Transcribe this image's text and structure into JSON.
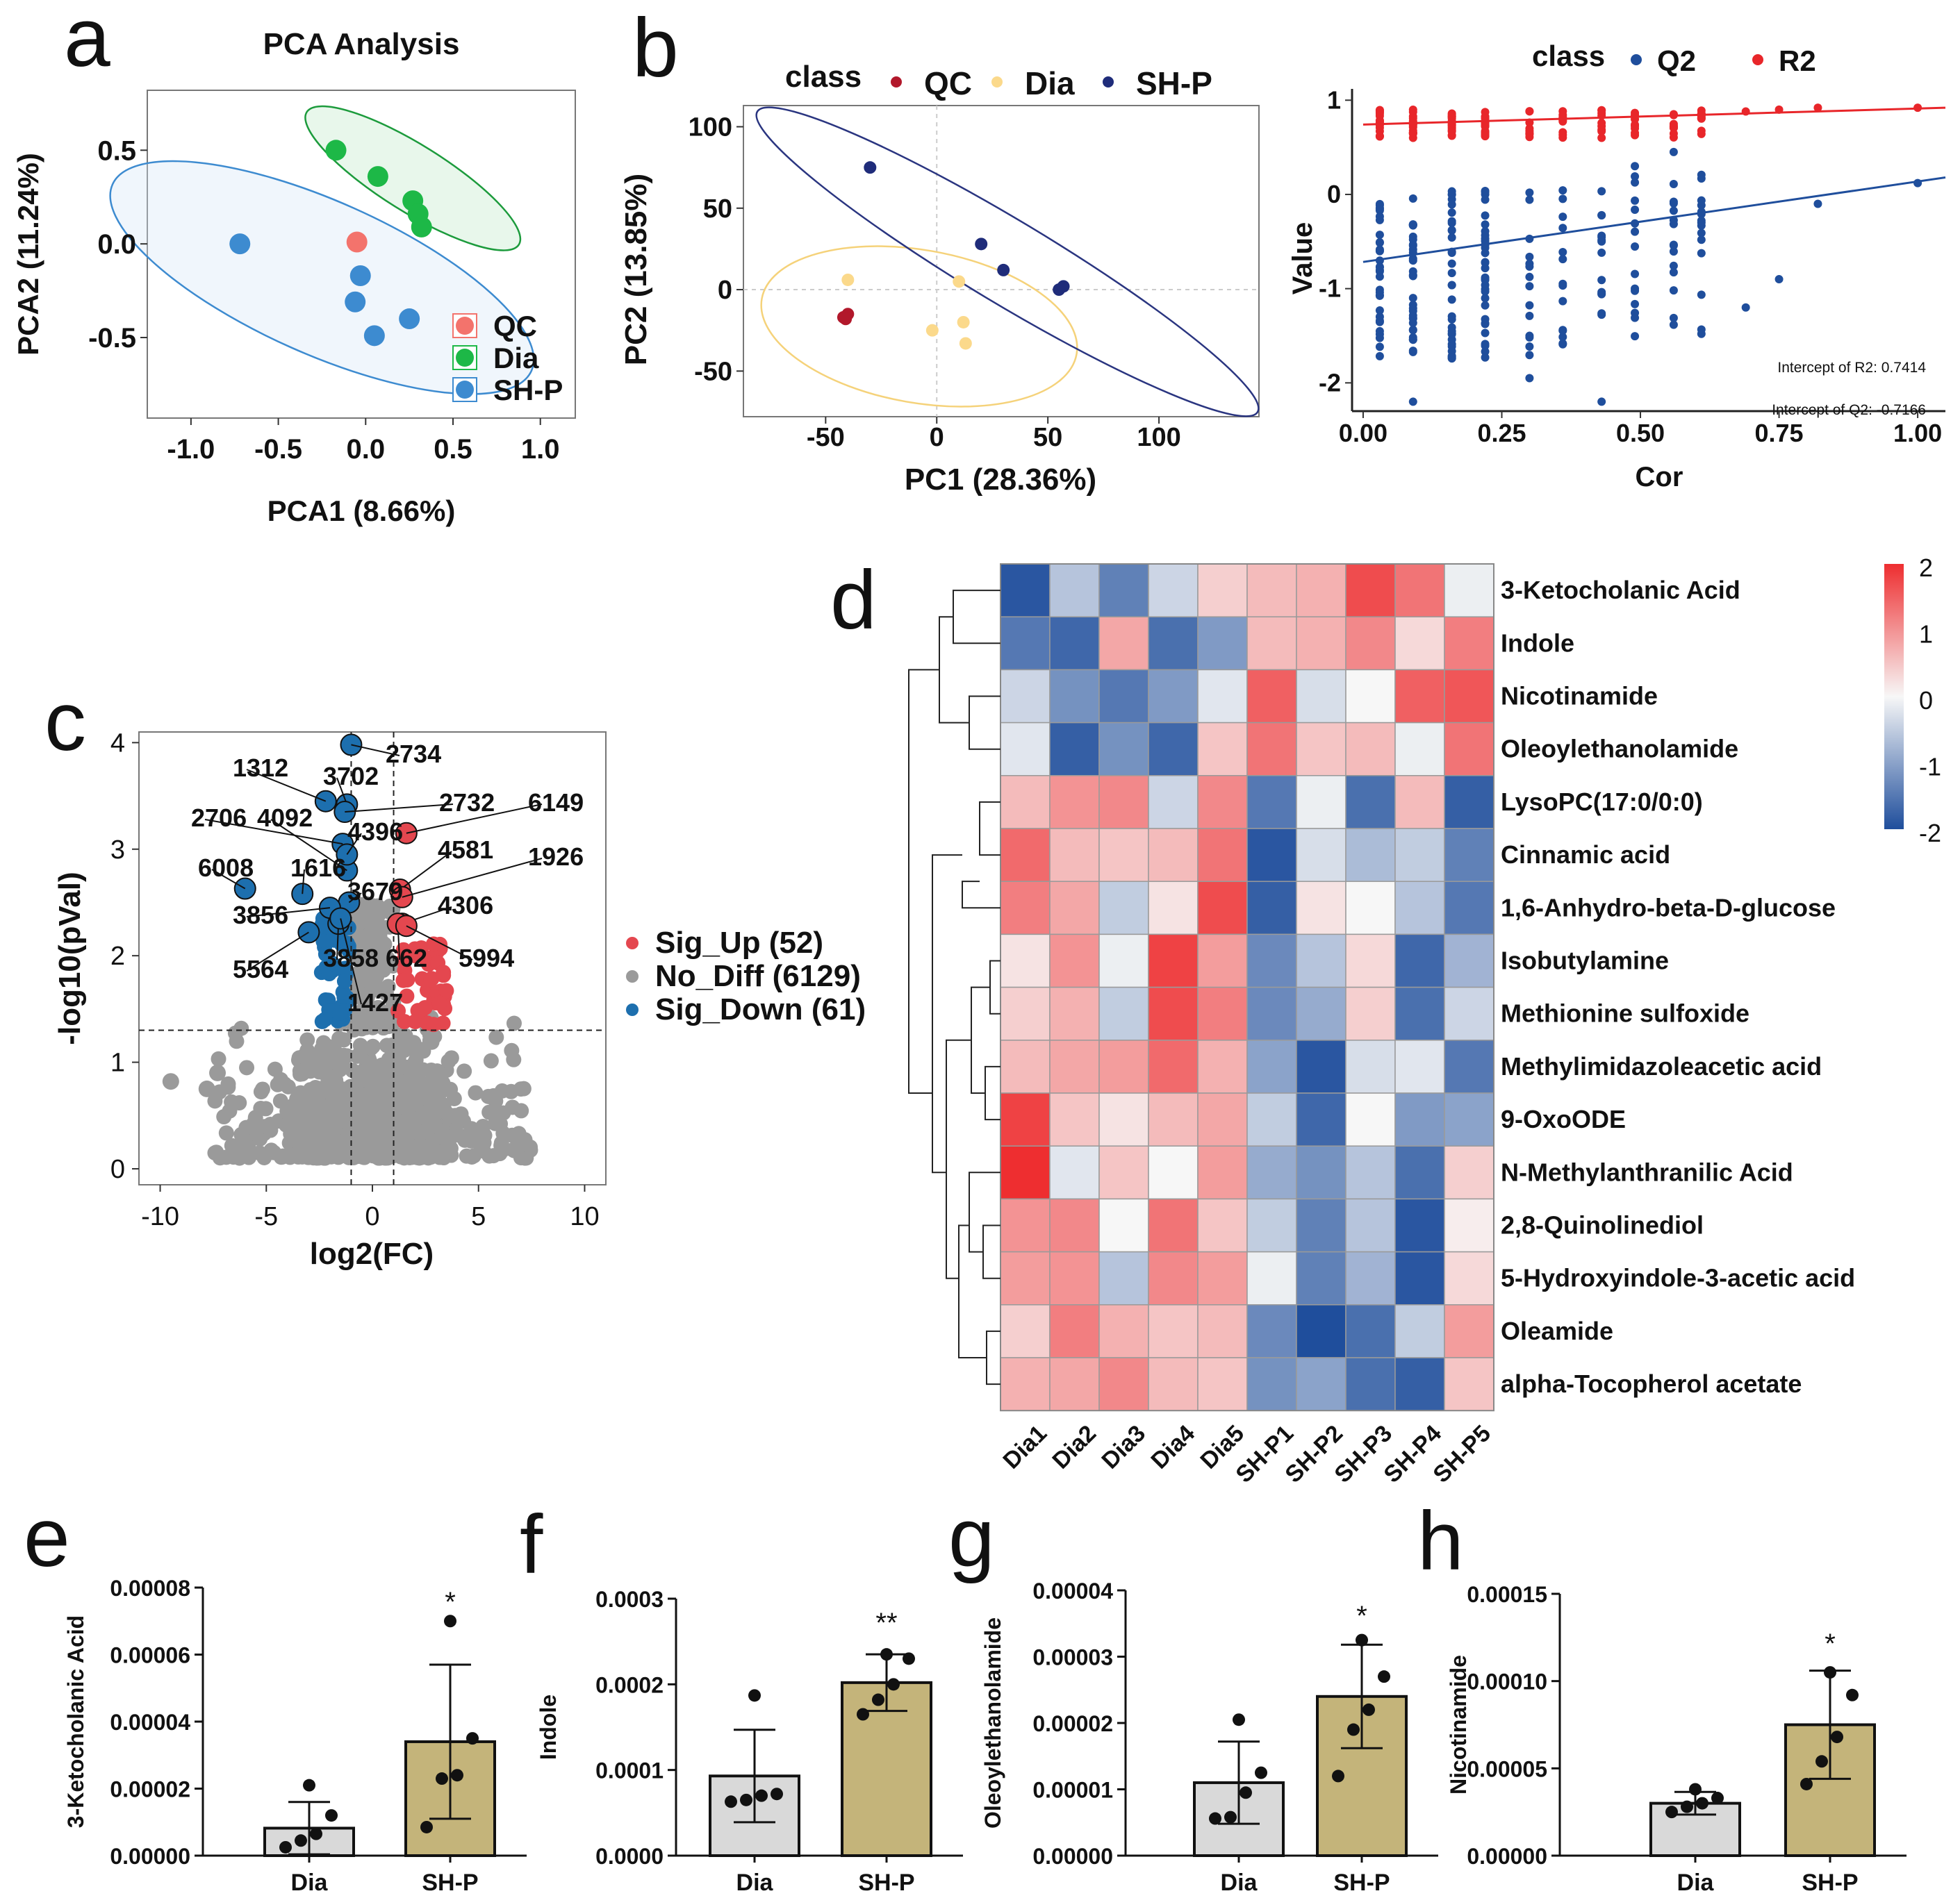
{
  "panel_letters": [
    "a",
    "b",
    "c",
    "d",
    "e",
    "f",
    "g",
    "h"
  ],
  "chart_data": [
    {
      "id": "a",
      "type": "scatter",
      "title": "PCA Analysis",
      "xlabel": "PCA1 (8.66%)",
      "ylabel": "PCA2 (11.24%)",
      "xlim": [
        -1.25,
        1.2
      ],
      "ylim": [
        -0.93,
        0.82
      ],
      "xticks": [
        -1.0,
        -0.5,
        0.0,
        0.5,
        1.0
      ],
      "xtick_labels": [
        "-1.0",
        "-0.5",
        "0.0",
        "0.5",
        "1.0"
      ],
      "yticks": [
        0.5,
        0.0,
        -0.5
      ],
      "ytick_labels": [
        "0.5",
        "0.0",
        "-0.5"
      ],
      "legend": [
        "QC",
        "Dia",
        "SH-P"
      ],
      "colors": {
        "QC": "#f3736c",
        "Dia": "#1db847",
        "SH-P": "#3d8bd0"
      },
      "series": [
        {
          "name": "QC",
          "x": [
            -0.05
          ],
          "y": [
            0.01
          ]
        },
        {
          "name": "Dia",
          "x": [
            -0.17,
            0.07,
            0.27,
            0.3,
            0.32
          ],
          "y": [
            0.5,
            0.36,
            0.23,
            0.16,
            0.09
          ]
        },
        {
          "name": "SH-P",
          "x": [
            -0.72,
            -0.03,
            -0.06,
            0.05,
            0.25
          ],
          "y": [
            0.0,
            -0.17,
            -0.31,
            -0.49,
            -0.4
          ]
        }
      ]
    },
    {
      "id": "b1",
      "type": "scatter",
      "legend_title": "class",
      "legend": [
        "QC",
        "Dia",
        "SH-P"
      ],
      "colors": {
        "QC": "#b2182b",
        "Dia": "#fbd98b",
        "SH-P": "#1f2c7a"
      },
      "xlabel": "PC1 (28.36%)",
      "ylabel": "PC2 (13.85%)",
      "xlim": [
        -87,
        145
      ],
      "ylim": [
        -78,
        113
      ],
      "xticks": [
        -50,
        0,
        50,
        100
      ],
      "xtick_labels": [
        "-50",
        "0",
        "50",
        "100"
      ],
      "yticks": [
        100,
        50,
        0,
        -50
      ],
      "ytick_labels": [
        "100",
        "50",
        "0",
        "-50"
      ],
      "series": [
        {
          "name": "QC",
          "x": [
            -40,
            -42,
            -41
          ],
          "y": [
            -15,
            -17,
            -18
          ]
        },
        {
          "name": "Dia",
          "x": [
            -40,
            -2,
            10,
            12,
            13
          ],
          "y": [
            6,
            -25,
            5,
            -20,
            -33
          ]
        },
        {
          "name": "SH-P",
          "x": [
            -30,
            20,
            30,
            55,
            57
          ],
          "y": [
            75,
            28,
            12,
            0,
            2
          ]
        }
      ]
    },
    {
      "id": "b2",
      "type": "scatter",
      "legend_title": "class",
      "legend": [
        "Q2",
        "R2"
      ],
      "colors": {
        "Q2": "#1f4e9c",
        "R2": "#e8262a"
      },
      "xlabel": "Cor",
      "ylabel": "Value",
      "xlim": [
        -0.02,
        1.05
      ],
      "ylim": [
        -2.3,
        1.12
      ],
      "xticks": [
        0.0,
        0.25,
        0.5,
        0.75,
        1.0
      ],
      "xtick_labels": [
        "0.00",
        "0.25",
        "0.50",
        "0.75",
        "1.00"
      ],
      "yticks": [
        1,
        0,
        -1,
        -2
      ],
      "ytick_labels": [
        "1",
        "0",
        "-1",
        "-2"
      ],
      "annotations": [
        "Intercept of R2: 0.7414",
        "Intercept of Q2: -0.7166"
      ],
      "r2_intercept": 0.7414,
      "q2_intercept": -0.7166,
      "r2_line_end": 0.92,
      "q2_line_end": 0.18,
      "perm_columns": [
        0.03,
        0.09,
        0.16,
        0.22,
        0.3,
        0.36,
        0.43,
        0.49,
        0.56,
        0.61,
        0.69,
        0.75,
        0.82,
        1.0
      ],
      "r2_top_series": {
        "x": [
          1.0,
          0.82,
          0.75,
          0.69
        ],
        "y": [
          0.92,
          0.92,
          0.9,
          0.88
        ]
      },
      "q2_extra_series": {
        "x": [
          0.49,
          0.56,
          0.61,
          0.69,
          0.75,
          0.82,
          1.0,
          0.09,
          0.43,
          0.3
        ],
        "y": [
          0.3,
          0.45,
          -0.3,
          -1.2,
          -0.9,
          -0.1,
          0.12,
          -2.2,
          -2.2,
          -1.95
        ]
      }
    },
    {
      "id": "c",
      "type": "scatter",
      "xlabel": "log2(FC)",
      "ylabel": "-log10(pVal)",
      "xlim": [
        -11,
        11
      ],
      "ylim": [
        -0.15,
        4.1
      ],
      "xticks": [
        -10,
        -5,
        0,
        5,
        10
      ],
      "xtick_labels": [
        "-10",
        "-5",
        "0",
        "5",
        "10"
      ],
      "yticks": [
        0,
        1,
        2,
        3,
        4
      ],
      "ytick_labels": [
        "0",
        "1",
        "2",
        "3",
        "4"
      ],
      "thresholds": {
        "fc": [
          -1,
          1
        ],
        "p": 1.3
      },
      "legend": [
        "Sig_Up (52)",
        "No_Diff (6129)",
        "Sig_Down (61)"
      ],
      "colors": {
        "Sig_Up": "#e4474f",
        "No_Diff": "#9a9a9a",
        "Sig_Down": "#1d6fae"
      },
      "labeled_points": [
        {
          "label": "2734",
          "x": -1.0,
          "y": 3.98,
          "class": "down"
        },
        {
          "label": "1312",
          "x": -2.2,
          "y": 3.45,
          "class": "down"
        },
        {
          "label": "3702",
          "x": -1.2,
          "y": 3.42,
          "class": "down"
        },
        {
          "label": "2732",
          "x": -1.3,
          "y": 3.35,
          "class": "down"
        },
        {
          "label": "6149",
          "x": 1.6,
          "y": 3.15,
          "class": "up"
        },
        {
          "label": "2706",
          "x": -1.4,
          "y": 3.05,
          "class": "down"
        },
        {
          "label": "4092",
          "x": -1.2,
          "y": 2.8,
          "class": "down"
        },
        {
          "label": "4396",
          "x": -1.2,
          "y": 2.95,
          "class": "down"
        },
        {
          "label": "6008",
          "x": -6.0,
          "y": 2.63,
          "class": "down"
        },
        {
          "label": "1616",
          "x": -3.3,
          "y": 2.58,
          "class": "down"
        },
        {
          "label": "4581",
          "x": 1.3,
          "y": 2.62,
          "class": "up"
        },
        {
          "label": "1926",
          "x": 1.4,
          "y": 2.55,
          "class": "up"
        },
        {
          "label": "3679",
          "x": -1.1,
          "y": 2.5,
          "class": "down"
        },
        {
          "label": "3856",
          "x": -2.0,
          "y": 2.45,
          "class": "down"
        },
        {
          "label": "4306",
          "x": 1.4,
          "y": 2.3,
          "class": "up"
        },
        {
          "label": "5564",
          "x": -3.0,
          "y": 2.22,
          "class": "down"
        },
        {
          "label": "3858",
          "x": -1.6,
          "y": 2.3,
          "class": "down"
        },
        {
          "label": "662",
          "x": 1.2,
          "y": 2.3,
          "class": "up"
        },
        {
          "label": "5994",
          "x": 1.6,
          "y": 2.28,
          "class": "up"
        },
        {
          "label": "1427",
          "x": -1.5,
          "y": 2.35,
          "class": "down"
        }
      ]
    },
    {
      "id": "d",
      "type": "heatmap",
      "columns": [
        "Dia1",
        "Dia2",
        "Dia3",
        "Dia4",
        "Dia5",
        "SH-P1",
        "SH-P2",
        "SH-P3",
        "SH-P4",
        "SH-P5"
      ],
      "rows": [
        "3-Ketocholanic Acid",
        "Indole",
        "Nicotinamide",
        "Oleoylethanolamide",
        "LysoPC(17:0/0:0)",
        "Cinnamic acid",
        "1,6-Anhydro-beta-D-glucose",
        "Isobutylamine",
        "Methionine sulfoxide",
        "Methylimidazoleacetic acid",
        "9-OxoODE",
        "N-Methylanthranilic Acid",
        "2,8-Quinolinediol",
        "5-Hydroxyindole-3-acetic acid",
        "Oleamide",
        "alpha-Tocopherol acetate"
      ],
      "values": [
        [
          -1.9,
          -0.6,
          -1.4,
          -0.4,
          0.4,
          0.6,
          0.7,
          1.7,
          1.3,
          -0.1
        ],
        [
          -1.5,
          -1.7,
          0.8,
          -1.6,
          -1.1,
          0.6,
          0.7,
          1.1,
          0.3,
          1.2
        ],
        [
          -0.4,
          -1.2,
          -1.5,
          -1.1,
          -0.2,
          1.5,
          -0.3,
          0.0,
          1.5,
          1.6
        ],
        [
          -0.2,
          -1.8,
          -1.2,
          -1.7,
          0.5,
          1.3,
          0.5,
          0.6,
          -0.1,
          1.3
        ],
        [
          0.6,
          1.0,
          1.1,
          -0.4,
          1.1,
          -1.5,
          -0.1,
          -1.6,
          0.6,
          -1.8
        ],
        [
          1.4,
          0.6,
          0.5,
          0.6,
          1.3,
          -1.9,
          -0.3,
          -0.7,
          -0.5,
          -1.4
        ],
        [
          1.2,
          0.8,
          -0.5,
          0.2,
          1.7,
          -1.8,
          0.2,
          0.0,
          -0.6,
          -1.5
        ],
        [
          0.2,
          1.0,
          -0.1,
          1.8,
          0.9,
          -1.3,
          -0.6,
          0.3,
          -1.7,
          -0.8
        ],
        [
          0.4,
          0.7,
          -0.5,
          1.7,
          1.2,
          -1.3,
          -0.9,
          0.4,
          -1.6,
          -0.4
        ],
        [
          0.6,
          0.8,
          0.9,
          1.4,
          0.7,
          -1.0,
          -1.9,
          -0.3,
          -0.2,
          -1.5
        ],
        [
          1.8,
          0.5,
          0.2,
          0.6,
          0.8,
          -0.5,
          -1.7,
          0.0,
          -1.1,
          -1.0
        ],
        [
          2.0,
          -0.2,
          0.5,
          0.0,
          0.9,
          -0.9,
          -1.2,
          -0.6,
          -1.6,
          0.4
        ],
        [
          1.0,
          1.1,
          0.0,
          1.3,
          0.5,
          -0.5,
          -1.4,
          -0.6,
          -1.9,
          0.1
        ],
        [
          0.9,
          1.0,
          -0.6,
          1.1,
          0.9,
          -0.1,
          -1.4,
          -0.8,
          -1.9,
          0.3
        ],
        [
          0.4,
          1.2,
          0.7,
          0.5,
          0.6,
          -1.3,
          -2.0,
          -1.6,
          -0.5,
          0.9
        ],
        [
          0.7,
          0.8,
          1.1,
          0.6,
          0.5,
          -1.2,
          -1.0,
          -1.6,
          -1.8,
          0.5
        ]
      ],
      "scale": {
        "min": -2,
        "max": 2,
        "ticks": [
          "2",
          "1",
          "0",
          "-1",
          "-2"
        ],
        "low": "#1f4e9c",
        "mid": "#f7f7f7",
        "high": "#ee2e30"
      }
    },
    {
      "id": "e",
      "type": "bar",
      "ylabel": "3-Ketocholanic Acid",
      "categories": [
        "Dia",
        "SH-P"
      ],
      "values": [
        8.2e-06,
        3.4e-05
      ],
      "sd": [
        7.8e-06,
        2.3e-05
      ],
      "ylim": [
        0,
        8e-05
      ],
      "yticks": [
        0,
        2e-05,
        4e-05,
        6e-05,
        8e-05
      ],
      "ytick_labels": [
        "0.00000",
        "0.00002",
        "0.00004",
        "0.00006",
        "0.00008"
      ],
      "significance": "*",
      "points": [
        [
          2.5e-06,
          4.5e-06,
          6.5e-06,
          1.2e-05,
          2.1e-05
        ],
        [
          8.5e-06,
          2.3e-05,
          2.4e-05,
          3.5e-05,
          7e-05
        ]
      ]
    },
    {
      "id": "f",
      "type": "bar",
      "ylabel": "Indole",
      "categories": [
        "Dia",
        "SH-P"
      ],
      "values": [
        9.3e-05,
        0.000202
      ],
      "sd": [
        5.4e-05,
        3.3e-05
      ],
      "ylim": [
        0,
        0.0003
      ],
      "yticks": [
        0,
        0.0001,
        0.0002,
        0.0003
      ],
      "ytick_labels": [
        "0.0000",
        "0.0001",
        "0.0002",
        "0.0003"
      ],
      "significance": "**",
      "points": [
        [
          6.3e-05,
          6.5e-05,
          7e-05,
          7.2e-05,
          0.000187
        ],
        [
          0.000165,
          0.000182,
          0.0002,
          0.00023,
          0.000235
        ]
      ]
    },
    {
      "id": "g",
      "type": "bar",
      "ylabel": "Oleoylethanolamide",
      "categories": [
        "Dia",
        "SH-P"
      ],
      "values": [
        1.1e-05,
        2.4e-05
      ],
      "sd": [
        6.2e-06,
        7.8e-06
      ],
      "ylim": [
        0,
        4e-05
      ],
      "yticks": [
        0,
        1e-05,
        2e-05,
        3e-05,
        4e-05
      ],
      "ytick_labels": [
        "0.00000",
        "0.00001",
        "0.00002",
        "0.00003",
        "0.00004"
      ],
      "significance": "*",
      "points": [
        [
          5.6e-06,
          5.8e-06,
          9.5e-06,
          1.25e-05,
          2.05e-05
        ],
        [
          1.2e-05,
          1.9e-05,
          2.2e-05,
          2.7e-05,
          3.25e-05
        ]
      ]
    },
    {
      "id": "h",
      "type": "bar",
      "ylabel": "Nicotinamide",
      "categories": [
        "Dia",
        "SH-P"
      ],
      "values": [
        3e-05,
        7.5e-05
      ],
      "sd": [
        6.5e-06,
        3.1e-05
      ],
      "ylim": [
        0,
        0.00015
      ],
      "yticks": [
        0,
        5e-05,
        0.0001,
        0.00015
      ],
      "ytick_labels": [
        "0.00000",
        "0.00005",
        "0.00010",
        "0.00015"
      ],
      "significance": "*",
      "points": [
        [
          2.5e-05,
          2.8e-05,
          3e-05,
          3.3e-05,
          3.8e-05
        ],
        [
          4.1e-05,
          5.4e-05,
          6.8e-05,
          9.2e-05,
          0.000105
        ]
      ]
    }
  ]
}
